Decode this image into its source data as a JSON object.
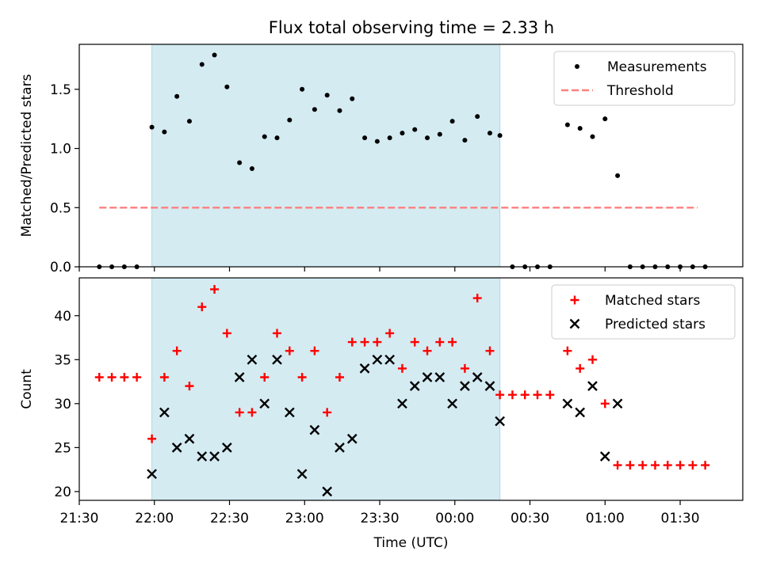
{
  "title": "Flux total observing time = 2.33 h",
  "colors": {
    "measurement": "#000000",
    "threshold": "#ff7f7f",
    "matched": "#ff0000",
    "predicted": "#000000",
    "shade": "#add8e6"
  },
  "chart_data": [
    {
      "type": "scatter",
      "ylabel": "Matched/Predicted stars",
      "xlabel": "",
      "ylim": [
        0,
        1.88
      ],
      "yticks": [
        0.0,
        0.5,
        1.0,
        1.5
      ],
      "ytick_labels": [
        "0.0",
        "0.5",
        "1.0",
        "1.5"
      ],
      "legend": {
        "position": "top-right",
        "entries": [
          "Measurements",
          "Threshold"
        ]
      },
      "shaded_span": [
        "21:59",
        "00:18"
      ],
      "threshold": {
        "name": "Threshold",
        "value": 0.5,
        "x_range": [
          "21:38",
          "01:37"
        ]
      },
      "series": [
        {
          "name": "Measurements",
          "marker": "dot",
          "x": [
            "21:38",
            "21:43",
            "21:48",
            "21:53",
            "21:59",
            "22:04",
            "22:09",
            "22:14",
            "22:19",
            "22:24",
            "22:29",
            "22:34",
            "22:39",
            "22:44",
            "22:49",
            "22:54",
            "22:59",
            "23:04",
            "23:09",
            "23:14",
            "23:19",
            "23:24",
            "23:29",
            "23:34",
            "23:39",
            "23:44",
            "23:49",
            "23:54",
            "23:59",
            "24:04",
            "24:09",
            "24:14",
            "24:18",
            "24:23",
            "24:28",
            "24:33",
            "24:38",
            "24:45",
            "24:50",
            "24:55",
            "25:00",
            "25:05",
            "25:10",
            "25:15",
            "25:20",
            "25:25",
            "25:30",
            "25:35",
            "25:40"
          ],
          "y": [
            0,
            0,
            0,
            0,
            1.18,
            1.14,
            1.44,
            1.23,
            1.71,
            1.79,
            1.52,
            0.88,
            0.83,
            1.1,
            1.09,
            1.24,
            1.5,
            1.33,
            1.45,
            1.32,
            1.42,
            1.09,
            1.06,
            1.09,
            1.13,
            1.16,
            1.09,
            1.12,
            1.23,
            1.07,
            1.27,
            1.13,
            1.11,
            0,
            0,
            0,
            0,
            1.2,
            1.17,
            1.1,
            1.25,
            0.77,
            0,
            0,
            0,
            0,
            0,
            0,
            0
          ]
        }
      ]
    },
    {
      "type": "scatter",
      "xlabel": "Time (UTC)",
      "ylabel": "Count",
      "ylim": [
        19,
        44.3
      ],
      "yticks": [
        20,
        25,
        30,
        35,
        40
      ],
      "ytick_labels": [
        "20",
        "25",
        "30",
        "35",
        "40"
      ],
      "xlim": [
        "21:30",
        "01:55"
      ],
      "xticks": [
        "21:30",
        "22:00",
        "22:30",
        "23:00",
        "23:30",
        "00:00",
        "00:30",
        "01:00",
        "01:30"
      ],
      "legend": {
        "position": "top-right",
        "entries": [
          "Matched stars",
          "Predicted stars"
        ]
      },
      "shaded_span": [
        "21:59",
        "00:18"
      ],
      "series": [
        {
          "name": "Matched stars",
          "marker": "plus",
          "x": [
            "21:38",
            "21:43",
            "21:48",
            "21:53",
            "21:59",
            "22:04",
            "22:09",
            "22:14",
            "22:19",
            "22:24",
            "22:29",
            "22:34",
            "22:39",
            "22:44",
            "22:49",
            "22:54",
            "22:59",
            "23:04",
            "23:09",
            "23:14",
            "23:19",
            "23:24",
            "23:29",
            "23:34",
            "23:39",
            "23:44",
            "23:49",
            "23:54",
            "23:59",
            "24:04",
            "24:09",
            "24:14",
            "24:18",
            "24:23",
            "24:28",
            "24:33",
            "24:38",
            "24:45",
            "24:50",
            "24:55",
            "25:00",
            "25:05",
            "25:10",
            "25:15",
            "25:20",
            "25:25",
            "25:30",
            "25:35",
            "25:40"
          ],
          "y": [
            33,
            33,
            33,
            33,
            26,
            33,
            36,
            32,
            41,
            43,
            38,
            29,
            29,
            33,
            38,
            36,
            33,
            36,
            29,
            33,
            37,
            37,
            37,
            38,
            34,
            37,
            36,
            37,
            37,
            34,
            42,
            36,
            31,
            31,
            31,
            31,
            31,
            36,
            34,
            35,
            30,
            23,
            23,
            23,
            23,
            23,
            23,
            23,
            23
          ]
        },
        {
          "name": "Predicted stars",
          "marker": "x",
          "x": [
            "21:59",
            "22:04",
            "22:09",
            "22:14",
            "22:19",
            "22:24",
            "22:29",
            "22:34",
            "22:39",
            "22:44",
            "22:49",
            "22:54",
            "22:59",
            "23:04",
            "23:09",
            "23:14",
            "23:19",
            "23:24",
            "23:29",
            "23:34",
            "23:39",
            "23:44",
            "23:49",
            "23:54",
            "23:59",
            "24:04",
            "24:09",
            "24:14",
            "24:18",
            "24:45",
            "24:50",
            "24:55",
            "25:00",
            "25:05"
          ],
          "y": [
            22,
            29,
            25,
            26,
            24,
            24,
            25,
            33,
            35,
            30,
            35,
            29,
            22,
            27,
            20,
            25,
            26,
            34,
            35,
            35,
            30,
            32,
            33,
            33,
            30,
            32,
            33,
            32,
            28,
            30,
            29,
            32,
            24,
            30
          ]
        }
      ]
    }
  ]
}
